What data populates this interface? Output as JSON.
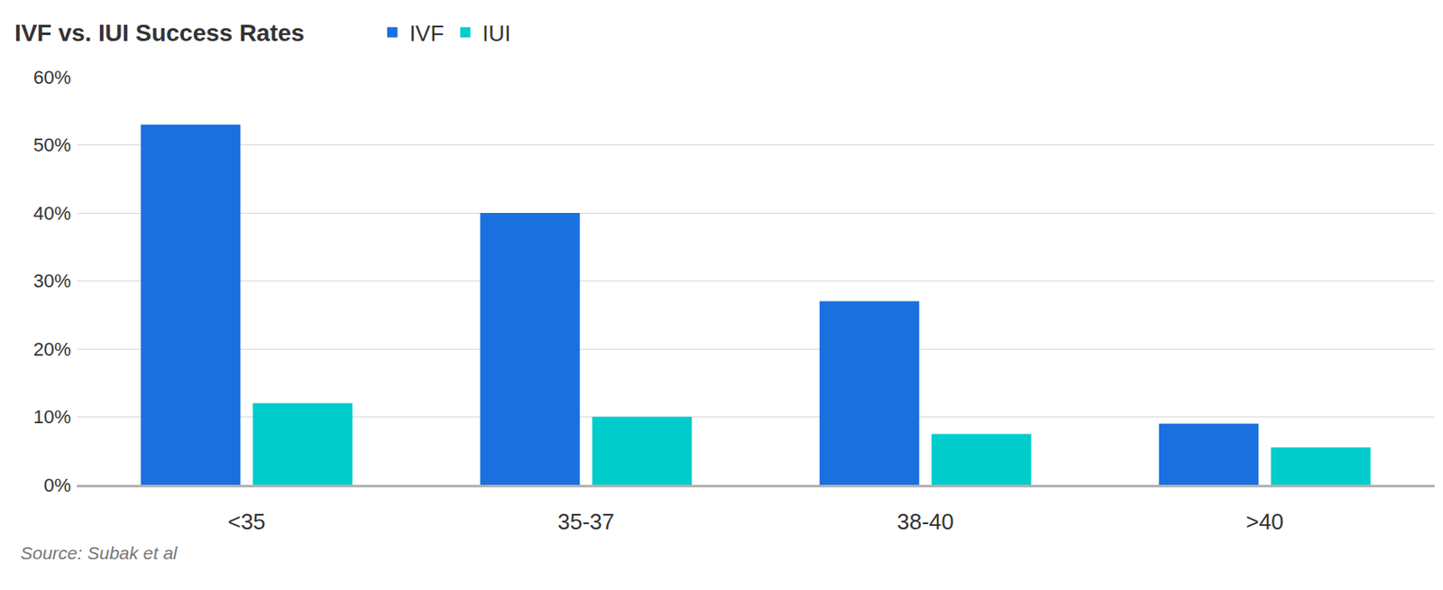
{
  "chart_data": {
    "type": "bar",
    "title": "IVF vs. IUI Success Rates",
    "source": "Source: Subak et al",
    "categories": [
      "<35",
      "35-37",
      "38-40",
      ">40"
    ],
    "series": [
      {
        "name": "IVF",
        "color": "#1b70e0",
        "values": [
          53,
          40,
          27,
          9
        ]
      },
      {
        "name": "IUI",
        "color": "#00cccc",
        "values": [
          12,
          10,
          7.5,
          5.5
        ]
      }
    ],
    "ylim": [
      0,
      60
    ],
    "yticks": [
      {
        "value": 0,
        "label": "0%"
      },
      {
        "value": 10,
        "label": "10%"
      },
      {
        "value": 20,
        "label": "20%"
      },
      {
        "value": 30,
        "label": "30%"
      },
      {
        "value": 40,
        "label": "40%"
      },
      {
        "value": 50,
        "label": "50%"
      },
      {
        "value": 60,
        "label": "60%"
      }
    ],
    "grid": true,
    "legend": "top"
  }
}
